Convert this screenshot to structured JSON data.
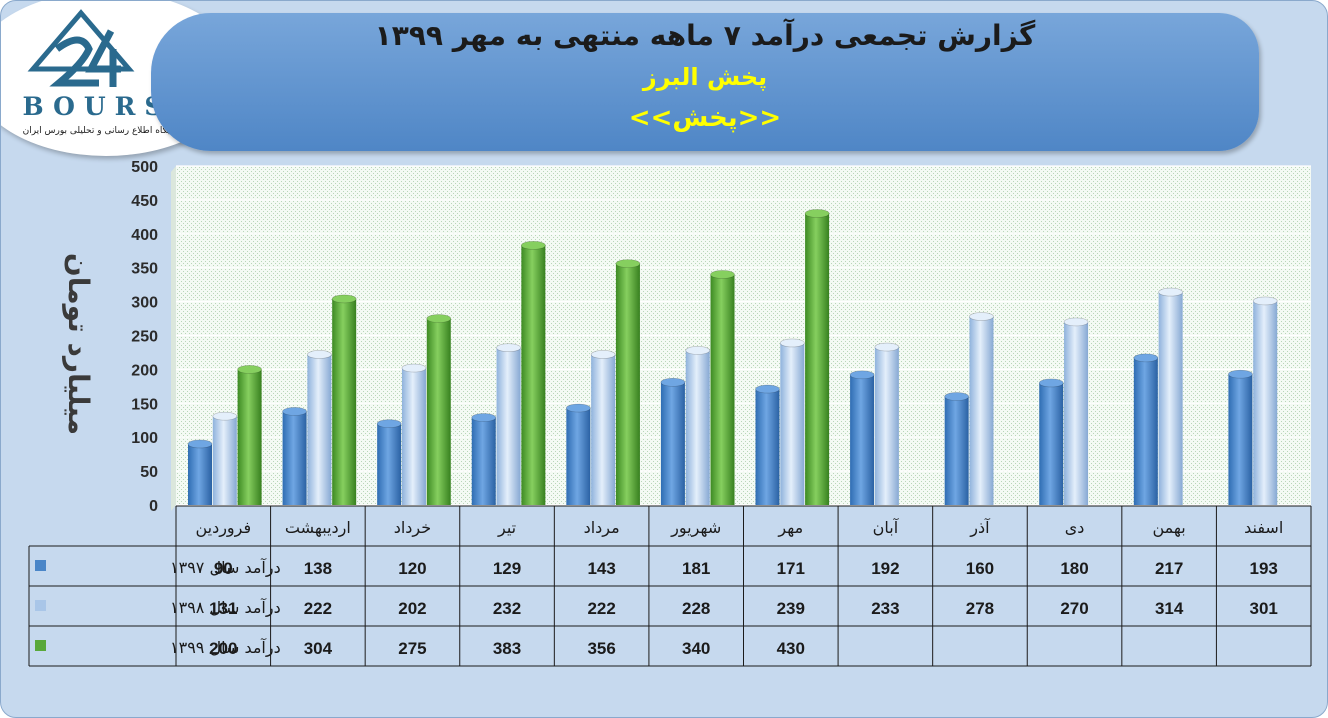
{
  "title": {
    "line1": "گزارش تجمعی درآمد ۷ ماهه منتهی به مهر ۱۳۹۹",
    "line2": "پخش البرز",
    "line3": "<<پخش>>"
  },
  "logo": {
    "name": "BOURSE",
    "tagline": "پایگاه اطلاع رسانی و تحلیلی بورس ایران",
    "colors": {
      "mark": "#2a6a8e",
      "text": "#2a6a8e"
    }
  },
  "colors": {
    "background": "#c6d9ee",
    "banner": "#5b8fd0",
    "title_text": "#1b1b1b",
    "subtitle_text": "#ffff00",
    "series_1397": "#4a86c8",
    "series_1398": "#a9c6e8",
    "series_1399": "#59a83a"
  },
  "chart_data": {
    "type": "bar",
    "ylabel": "میلیارد تومان",
    "ylim": [
      0,
      500
    ],
    "yticks": [
      0,
      50,
      100,
      150,
      200,
      250,
      300,
      350,
      400,
      450,
      500
    ],
    "categories": [
      "فروردین",
      "اردیبهشت",
      "خرداد",
      "تیر",
      "مرداد",
      "شهریور",
      "مهر",
      "آبان",
      "آذر",
      "دی",
      "بهمن",
      "اسفند"
    ],
    "series": [
      {
        "name": "درآمد سال ۱۳۹۷",
        "values": [
          90,
          138,
          120,
          129,
          143,
          181,
          171,
          192,
          160,
          180,
          217,
          193
        ]
      },
      {
        "name": "درآمد سال ۱۳۹۸",
        "values": [
          131,
          222,
          202,
          232,
          222,
          228,
          239,
          233,
          278,
          270,
          314,
          301
        ]
      },
      {
        "name": "درآمد سال ۱۳۹۹",
        "values": [
          200,
          304,
          275,
          383,
          356,
          340,
          430,
          null,
          null,
          null,
          null,
          null
        ]
      }
    ],
    "grid": true,
    "data_table": true
  }
}
